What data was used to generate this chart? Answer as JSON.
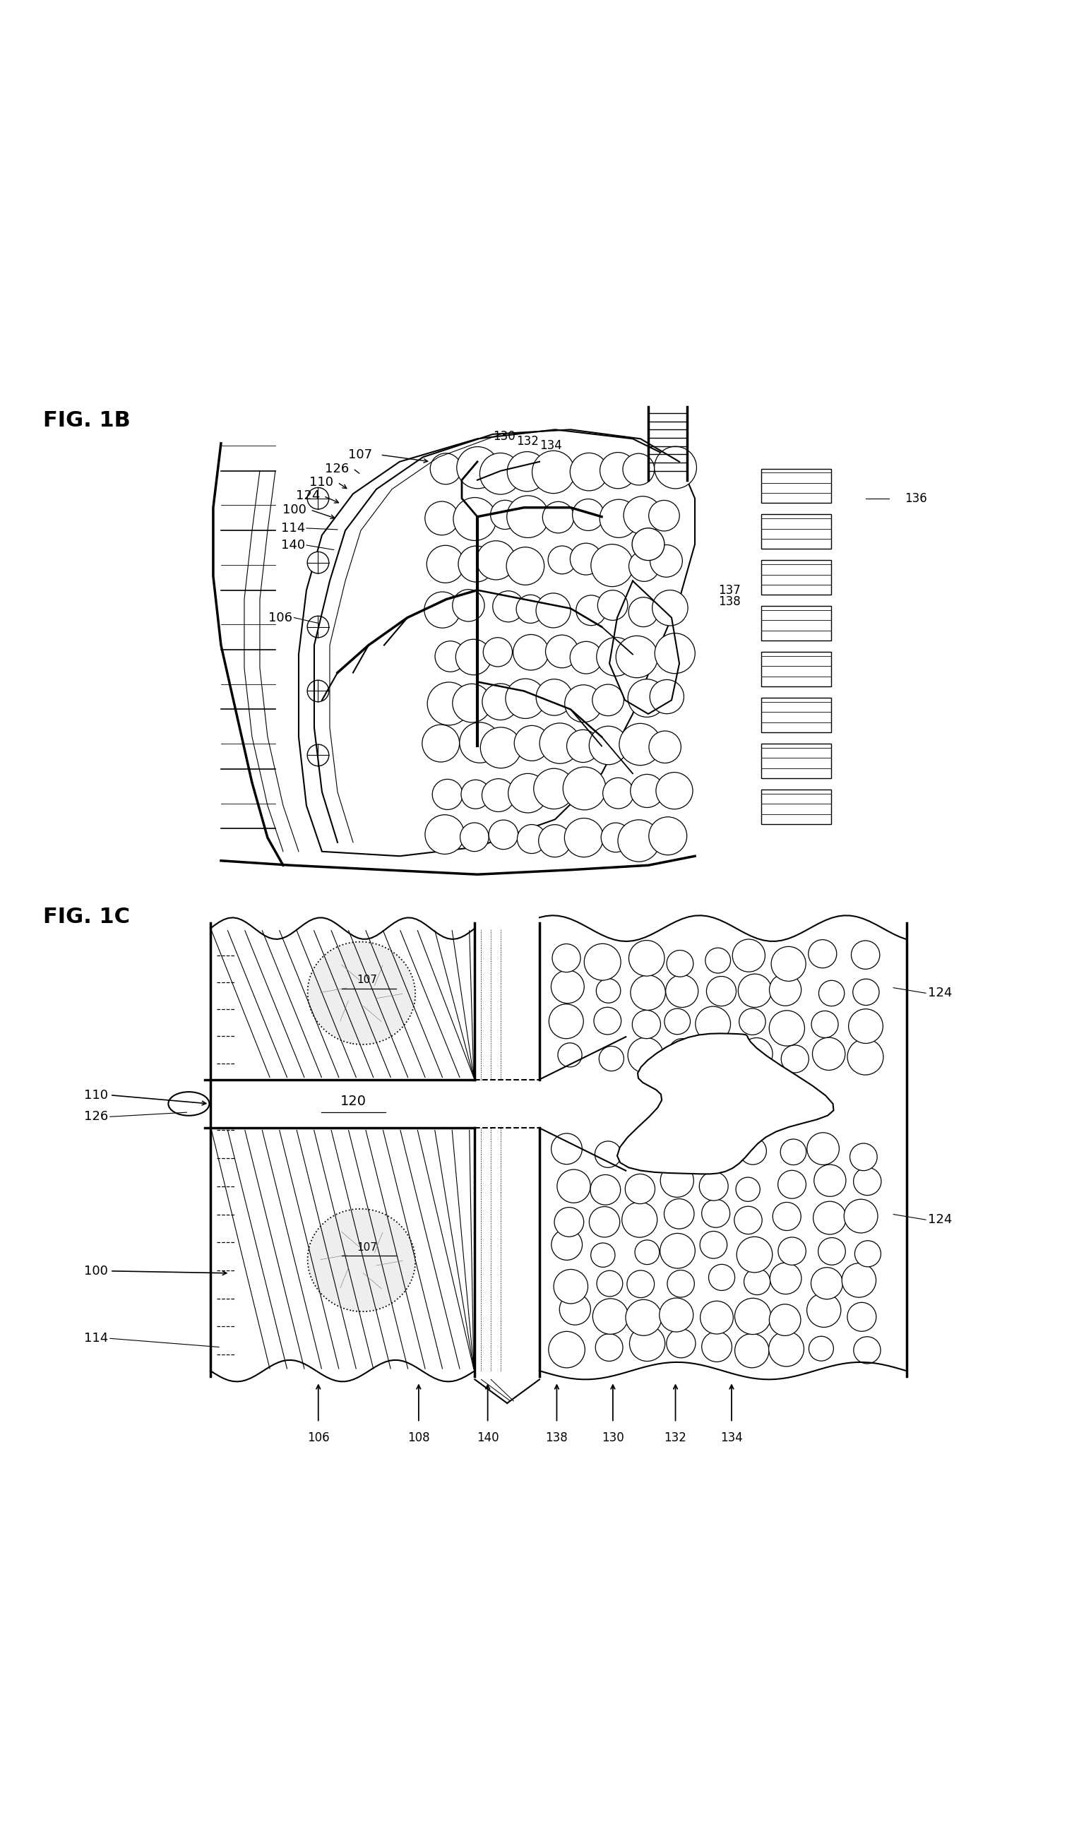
{
  "fig_labels": {
    "fig1b": "FIG. 1B",
    "fig1c": "FIG. 1C"
  },
  "background_color": "#ffffff",
  "line_color": "#000000",
  "text_color": "#000000",
  "fig1b_fontsize": 22,
  "fig1c_fontsize": 22,
  "label_fontsize": 13
}
